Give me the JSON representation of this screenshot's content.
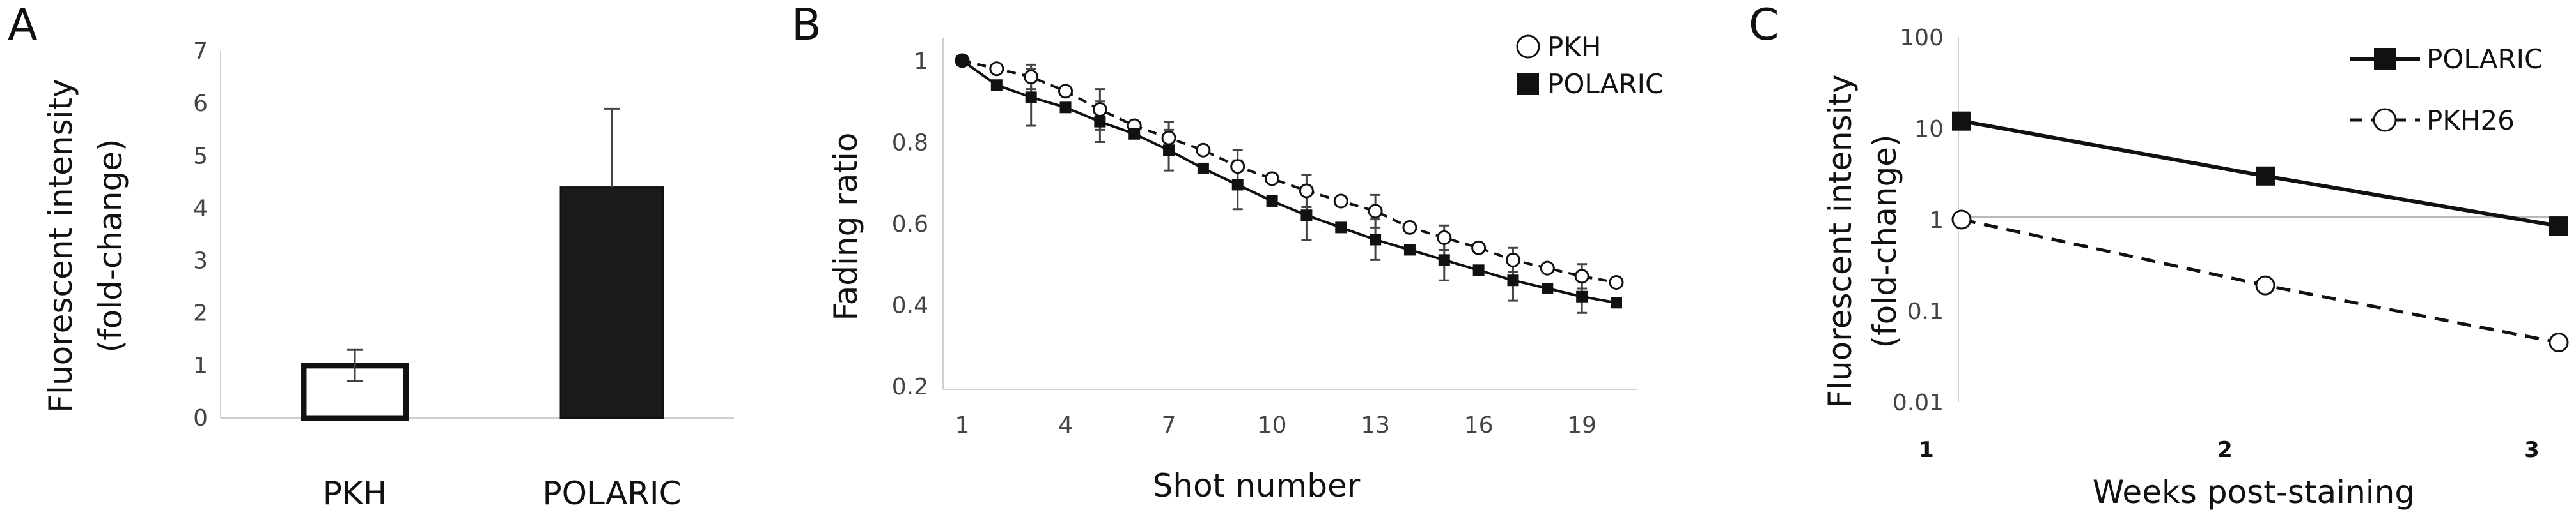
{
  "chart_data": [
    {
      "panel": "A",
      "type": "bar",
      "ylabel_line1": "Fluorescent intensity",
      "ylabel_line2": "(fold-change)",
      "categories": [
        "PKH",
        "POLARIC"
      ],
      "values": [
        1.0,
        4.4
      ],
      "errors": [
        0.3,
        1.5
      ],
      "fill_colors": [
        "#ffffff",
        "#1a1a1a"
      ],
      "ylim": [
        0,
        7
      ],
      "yticks": [
        "0",
        "1",
        "2",
        "3",
        "4",
        "5",
        "6",
        "7"
      ]
    },
    {
      "panel": "B",
      "type": "line",
      "xlabel": "Shot number",
      "ylabel": "Fading ratio",
      "xlim": [
        1,
        20
      ],
      "ylim": [
        0.2,
        1.0
      ],
      "xticks": [
        "1",
        "4",
        "7",
        "10",
        "13",
        "16",
        "19"
      ],
      "yticks": [
        "0.2",
        "0.4",
        "0.6",
        "0.8",
        "1"
      ],
      "legend_position": "top-right",
      "x": [
        1,
        2,
        3,
        4,
        5,
        6,
        7,
        8,
        9,
        10,
        11,
        12,
        13,
        14,
        15,
        16,
        17,
        18,
        19,
        20
      ],
      "series": [
        {
          "name": "PKH",
          "marker": "open-circle",
          "line": "dashed",
          "values": [
            1.0,
            0.98,
            0.96,
            0.925,
            0.88,
            0.84,
            0.81,
            0.78,
            0.74,
            0.71,
            0.68,
            0.655,
            0.63,
            0.59,
            0.565,
            0.54,
            0.51,
            0.49,
            0.47,
            0.455
          ],
          "errors": [
            0,
            0,
            0.03,
            0,
            0.05,
            0,
            0.04,
            0,
            0.04,
            0,
            0.04,
            0,
            0.04,
            0,
            0.03,
            0,
            0.03,
            0,
            0.03,
            0
          ]
        },
        {
          "name": "POLARIC",
          "marker": "filled-square",
          "line": "solid",
          "values": [
            1.0,
            0.94,
            0.91,
            0.885,
            0.85,
            0.82,
            0.78,
            0.735,
            0.695,
            0.655,
            0.62,
            0.59,
            0.56,
            0.535,
            0.51,
            0.485,
            0.46,
            0.44,
            0.42,
            0.405
          ],
          "errors": [
            0,
            0,
            0.07,
            0,
            0.05,
            0,
            0.05,
            0,
            0.06,
            0,
            0.06,
            0,
            0.05,
            0,
            0.05,
            0,
            0.05,
            0,
            0.04,
            0
          ]
        }
      ]
    },
    {
      "panel": "C",
      "type": "line",
      "xlabel": "Weeks post-staining",
      "ylabel_line1": "Fluorescent intensity",
      "ylabel_line2": "(fold-change)",
      "yscale": "log",
      "ylim": [
        0.01,
        100
      ],
      "xticks": [
        "1",
        "2",
        "3"
      ],
      "yticks": [
        "0.01",
        "0.1",
        "1",
        "10",
        "100"
      ],
      "legend_position": "top-right",
      "x": [
        1,
        2,
        3
      ],
      "series": [
        {
          "name": "POLARIC",
          "marker": "filled-square",
          "line": "solid",
          "values": [
            12,
            3,
            0.85
          ]
        },
        {
          "name": "PKH26",
          "marker": "open-circle",
          "line": "dashed",
          "values": [
            1.0,
            0.19,
            0.045
          ]
        }
      ]
    }
  ]
}
